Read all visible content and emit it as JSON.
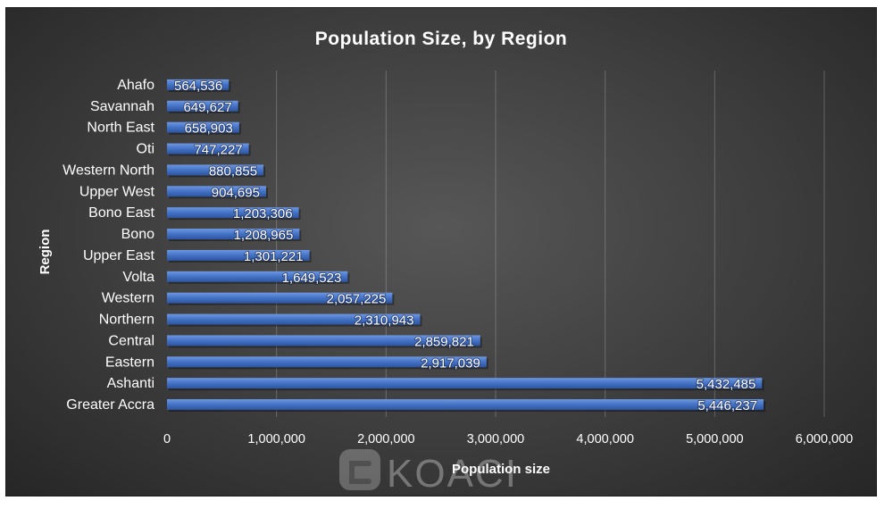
{
  "chart_data": {
    "type": "bar",
    "orientation": "horizontal",
    "title": "Population Size, by Region",
    "xlabel": "Population size",
    "ylabel": "Region",
    "xlim": [
      0,
      6000000
    ],
    "x_ticks": [
      "0",
      "1,000,000",
      "2,000,000",
      "3,000,000",
      "4,000,000",
      "5,000,000",
      "6,000,000"
    ],
    "grid": "vertical",
    "bar_color": "#4472c4",
    "categories": [
      "Ahafo",
      "Savannah",
      "North East",
      "Oti",
      "Western North",
      "Upper West",
      "Bono East",
      "Bono",
      "Upper East",
      "Volta",
      "Western",
      "Northern",
      "Central",
      "Eastern",
      "Ashanti",
      "Greater Accra"
    ],
    "values": [
      564536,
      649627,
      658903,
      747227,
      880855,
      904695,
      1203306,
      1208965,
      1301221,
      1649523,
      2057225,
      2310943,
      2859821,
      2917039,
      5432485,
      5446237
    ],
    "value_labels": [
      "564,536",
      "649,627",
      "658,903",
      "747,227",
      "880,855",
      "904,695",
      "1,203,306",
      "1,208,965",
      "1,301,221",
      "1,649,523",
      "2,057,225",
      "2,310,943",
      "2,859,821",
      "2,917,039",
      "5,432,485",
      "5,446,237"
    ]
  },
  "watermark": {
    "text": "KOACI"
  }
}
